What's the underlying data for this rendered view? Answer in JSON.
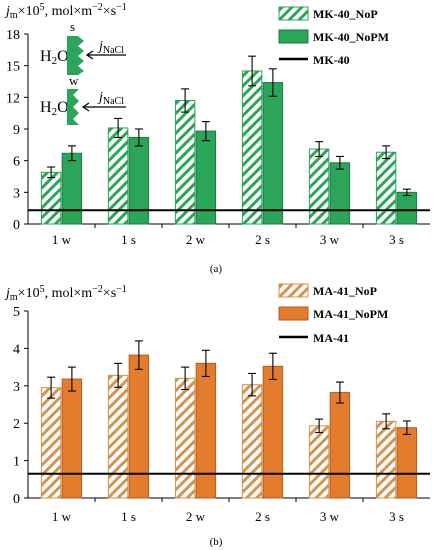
{
  "colors": {
    "green": "#2aa55a",
    "green_hatch": "#2aa55a",
    "orange": "#e47c2e",
    "orange_hatch": "#d4934f",
    "axis": "#000000"
  },
  "chart_data": [
    {
      "type": "bar",
      "panel_label": "(a)",
      "ylabel_main": "j",
      "ylabel_sub": "m",
      "ylabel_rest": "×10",
      "ylabel_exp": "5",
      "ylabel_units": ", mol×m",
      "ylabel_units_exp": "−2",
      "ylabel_units_tail": "×s",
      "ylabel_units_tail_exp": "−1",
      "categories": [
        "1 w",
        "1 s",
        "2 w",
        "2 s",
        "3 w",
        "3 s"
      ],
      "ylim": [
        0,
        18
      ],
      "yticks": [
        "0",
        "3",
        "6",
        "9",
        "12",
        "15",
        "18"
      ],
      "series": [
        {
          "name": "MK-40_NoP",
          "style": "hatched",
          "values": [
            4.9,
            9.1,
            11.7,
            14.5,
            7.1,
            6.8
          ],
          "errors": [
            0.5,
            0.9,
            1.1,
            1.4,
            0.7,
            0.6
          ]
        },
        {
          "name": "MK-40_NoPM",
          "style": "solid",
          "values": [
            6.7,
            8.2,
            8.8,
            13.4,
            5.8,
            3.0
          ],
          "errors": [
            0.7,
            0.8,
            0.9,
            1.3,
            0.6,
            0.3
          ]
        }
      ],
      "reference": {
        "name": "MK-40",
        "value": 1.3
      },
      "inset": {
        "label_s": "s",
        "label_w": "w",
        "water_main": "H",
        "water_sub": "2",
        "water_tail": "O",
        "flux_main": "j",
        "flux_sub": "NaCl"
      }
    },
    {
      "type": "bar",
      "panel_label": "(b)",
      "ylabel_main": "j",
      "ylabel_sub": "m",
      "ylabel_rest": "×10",
      "ylabel_exp": "5",
      "ylabel_units": ", mol×m",
      "ylabel_units_exp": "−2",
      "ylabel_units_tail": "×s",
      "ylabel_units_tail_exp": "−1",
      "categories": [
        "1 w",
        "1 s",
        "2 w",
        "2 s",
        "3 w",
        "3 s"
      ],
      "ylim": [
        0,
        5
      ],
      "yticks": [
        "0",
        "1",
        "2",
        "3",
        "4",
        "5"
      ],
      "series": [
        {
          "name": "MA-41_NoP",
          "style": "hatched",
          "values": [
            2.95,
            3.28,
            3.2,
            3.03,
            1.93,
            2.05
          ],
          "errors": [
            0.28,
            0.32,
            0.3,
            0.3,
            0.18,
            0.2
          ]
        },
        {
          "name": "MA-41_NoPM",
          "style": "solid",
          "values": [
            3.18,
            3.82,
            3.6,
            3.52,
            2.82,
            1.88
          ],
          "errors": [
            0.32,
            0.38,
            0.35,
            0.35,
            0.28,
            0.18
          ]
        }
      ],
      "reference": {
        "name": "MA-41",
        "value": 0.65
      }
    }
  ]
}
